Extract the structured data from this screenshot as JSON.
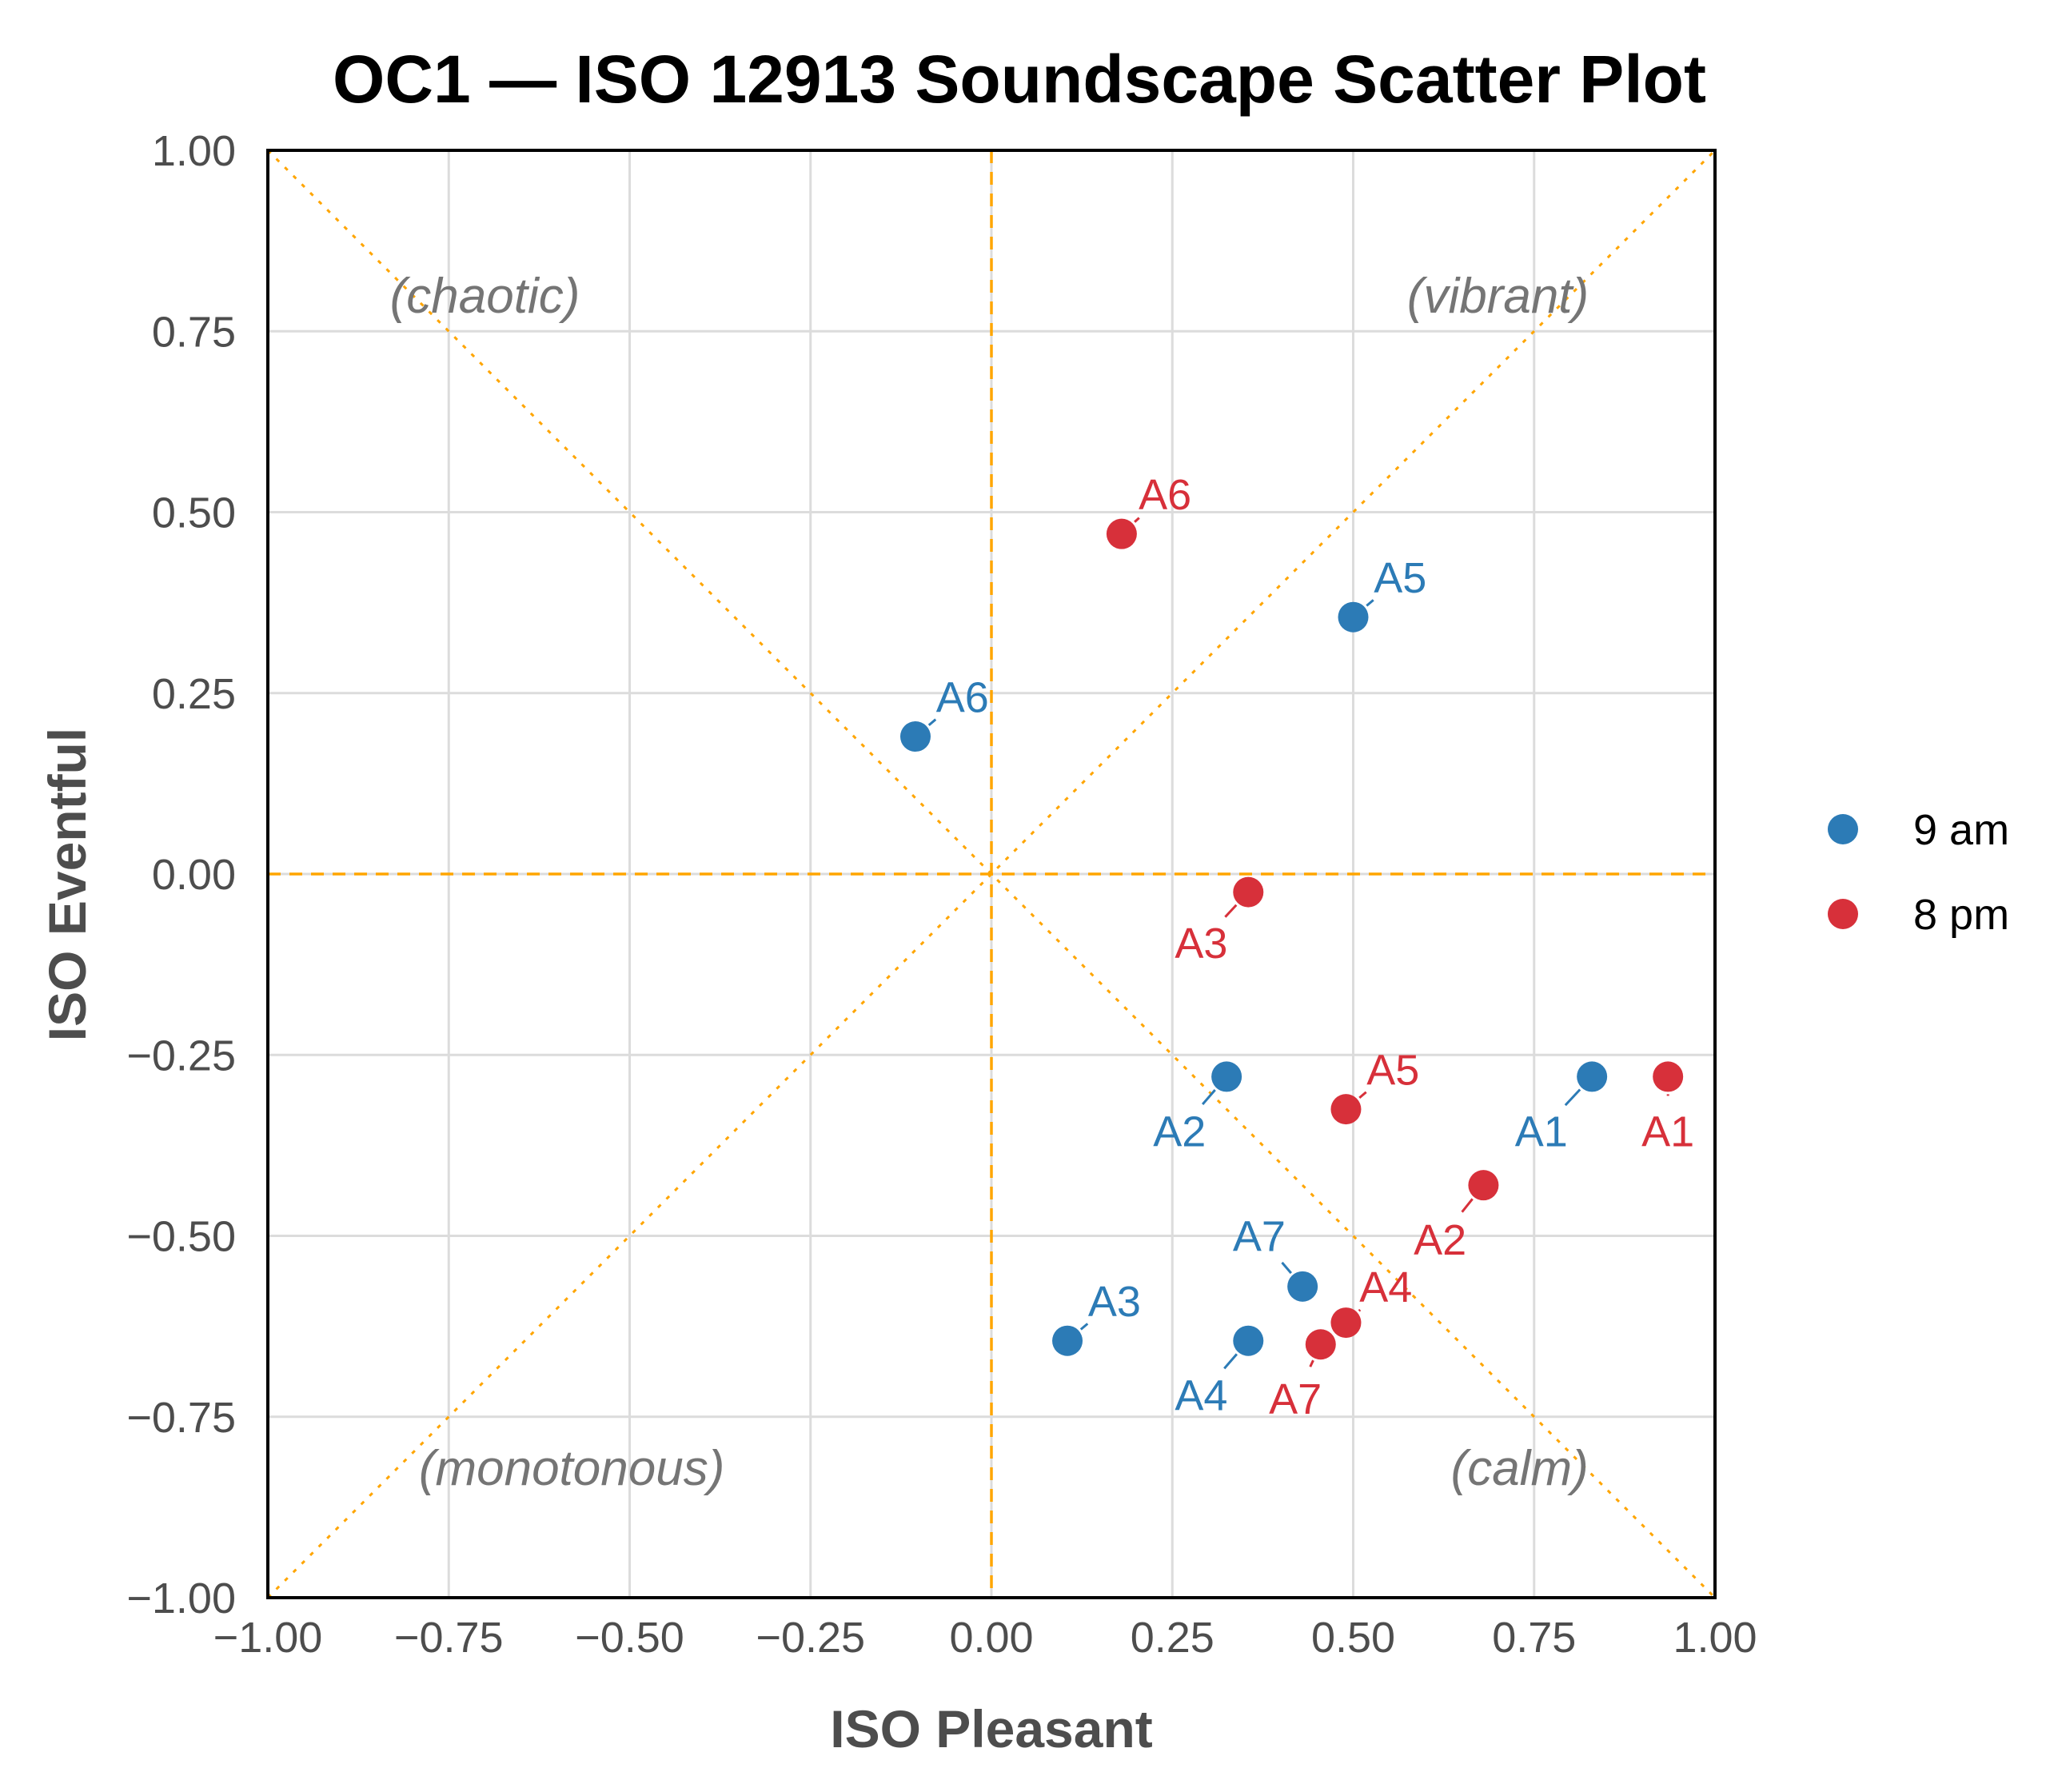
{
  "chart_data": {
    "type": "scatter",
    "title": "OC1 — ISO 12913 Soundscape Scatter Plot",
    "xlabel": "ISO Pleasant",
    "ylabel": "ISO Eventful",
    "xlim": [
      -1.0,
      1.0
    ],
    "ylim": [
      -1.0,
      1.0
    ],
    "xticks": [
      -1.0,
      -0.75,
      -0.5,
      -0.25,
      0.0,
      0.25,
      0.5,
      0.75,
      1.0
    ],
    "yticks": [
      -1.0,
      -0.75,
      -0.5,
      -0.25,
      0.0,
      0.25,
      0.5,
      0.75,
      1.0
    ],
    "xtick_labels": [
      "−1.00",
      "−0.75",
      "−0.50",
      "−0.25",
      "0.00",
      "0.25",
      "0.50",
      "0.75",
      "1.00"
    ],
    "ytick_labels": [
      "−1.00",
      "−0.75",
      "−0.50",
      "−0.25",
      "0.00",
      "0.25",
      "0.50",
      "0.75",
      "1.00"
    ],
    "grid": true,
    "legend_position": "right",
    "quadrant_labels": [
      {
        "text": "(chaotic)",
        "x": -0.7,
        "y": 0.8
      },
      {
        "text": "(vibrant)",
        "x": 0.7,
        "y": 0.8
      },
      {
        "text": "(monotonous)",
        "x": -0.58,
        "y": -0.82
      },
      {
        "text": "(calm)",
        "x": 0.73,
        "y": -0.82
      }
    ],
    "series": [
      {
        "name": "9 am",
        "color": "#2c7bb6",
        "points": [
          {
            "label": "A1",
            "x": 0.83,
            "y": -0.28,
            "lx": 0.76,
            "ly": -0.355
          },
          {
            "label": "A2",
            "x": 0.325,
            "y": -0.28,
            "lx": 0.26,
            "ly": -0.355
          },
          {
            "label": "A3",
            "x": 0.105,
            "y": -0.645,
            "lx": 0.17,
            "ly": -0.59
          },
          {
            "label": "A4",
            "x": 0.355,
            "y": -0.645,
            "lx": 0.29,
            "ly": -0.72
          },
          {
            "label": "A5",
            "x": 0.5,
            "y": 0.355,
            "lx": 0.565,
            "ly": 0.41
          },
          {
            "label": "A6",
            "x": -0.105,
            "y": 0.19,
            "lx": -0.04,
            "ly": 0.245
          },
          {
            "label": "A7",
            "x": 0.43,
            "y": -0.57,
            "lx": 0.37,
            "ly": -0.5
          }
        ]
      },
      {
        "name": "8 pm",
        "color": "#d7303a",
        "points": [
          {
            "label": "A1",
            "x": 0.935,
            "y": -0.28,
            "lx": 0.935,
            "ly": -0.355
          },
          {
            "label": "A2",
            "x": 0.68,
            "y": -0.43,
            "lx": 0.62,
            "ly": -0.505
          },
          {
            "label": "A3",
            "x": 0.355,
            "y": -0.025,
            "lx": 0.29,
            "ly": -0.095
          },
          {
            "label": "A4",
            "x": 0.49,
            "y": -0.62,
            "lx": 0.545,
            "ly": -0.57
          },
          {
            "label": "A5",
            "x": 0.49,
            "y": -0.325,
            "lx": 0.555,
            "ly": -0.27
          },
          {
            "label": "A6",
            "x": 0.18,
            "y": 0.47,
            "lx": 0.24,
            "ly": 0.525
          },
          {
            "label": "A7",
            "x": 0.455,
            "y": -0.65,
            "lx": 0.42,
            "ly": -0.725
          }
        ]
      }
    ]
  }
}
